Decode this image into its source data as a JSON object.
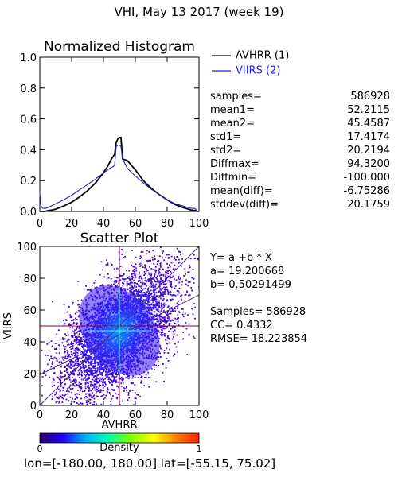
{
  "page": {
    "title": "VHI,  May 13 2017 (week 19)",
    "footer": "lon=[-180.00, 180.00] lat=[-55.15, 75.02]"
  },
  "colors": {
    "avhrr_line": "#000000",
    "viirs_line": "#2222cc",
    "frame": "#000000",
    "guide_lines": "#800040"
  },
  "chart_data": [
    {
      "type": "line",
      "title": "Normalized Histogram",
      "xlabel": "",
      "ylabel": "",
      "xlim": [
        0,
        100
      ],
      "ylim": [
        0,
        1.0
      ],
      "xticks": [
        "0",
        "20",
        "40",
        "60",
        "80",
        "100"
      ],
      "yticks": [
        "0.0",
        "0.2",
        "0.4",
        "0.6",
        "0.8",
        "1.0"
      ],
      "legend_position": "right",
      "series": [
        {
          "name": "AVHRR (1)",
          "color": "#000000",
          "x": [
            0,
            1,
            3,
            5,
            8,
            10,
            15,
            20,
            25,
            30,
            35,
            40,
            43,
            45,
            47,
            48,
            49,
            50,
            51,
            52,
            55,
            60,
            65,
            70,
            75,
            80,
            85,
            90,
            95,
            98,
            99,
            100
          ],
          "y": [
            0.0,
            0.0,
            0.0,
            0.005,
            0.01,
            0.015,
            0.035,
            0.06,
            0.095,
            0.135,
            0.185,
            0.25,
            0.3,
            0.34,
            0.37,
            0.45,
            0.47,
            0.48,
            0.48,
            0.34,
            0.33,
            0.27,
            0.2,
            0.15,
            0.11,
            0.075,
            0.045,
            0.025,
            0.01,
            0.005,
            0.0,
            0.0
          ]
        },
        {
          "name": "VIIRS (2)",
          "color": "#2222cc",
          "x": [
            0,
            0.5,
            1,
            2,
            4,
            6,
            8,
            10,
            15,
            20,
            25,
            30,
            35,
            40,
            44,
            46,
            47,
            48,
            49,
            50,
            51,
            52,
            55,
            60,
            65,
            70,
            75,
            80,
            85,
            90,
            95,
            97,
            98,
            99,
            100
          ],
          "y": [
            0.12,
            0.05,
            0.03,
            0.02,
            0.02,
            0.03,
            0.04,
            0.05,
            0.075,
            0.105,
            0.14,
            0.175,
            0.21,
            0.25,
            0.28,
            0.29,
            0.3,
            0.42,
            0.43,
            0.43,
            0.42,
            0.34,
            0.28,
            0.23,
            0.185,
            0.145,
            0.11,
            0.075,
            0.05,
            0.035,
            0.02,
            0.02,
            0.015,
            0.0,
            0.0
          ]
        }
      ]
    },
    {
      "type": "scatter",
      "title": "Scatter Plot",
      "xlabel": "AVHRR",
      "ylabel": "VIIRS",
      "xlim": [
        0,
        100
      ],
      "ylim": [
        0,
        100
      ],
      "xticks": [
        "0",
        "20",
        "40",
        "60",
        "80",
        "100"
      ],
      "yticks": [
        "0",
        "20",
        "40",
        "60",
        "80",
        "100"
      ],
      "fit_intercept": 19.200668,
      "fit_slope": 0.50291499,
      "samples": 586928,
      "cc": 0.4332,
      "rmse": 18.223854,
      "density_center": [
        50,
        47
      ],
      "guide_lines": {
        "x": 50,
        "y": 50
      }
    }
  ],
  "stats": {
    "rows": [
      {
        "label": "samples=",
        "value": "586928"
      },
      {
        "label": "mean1=",
        "value": "52.2115"
      },
      {
        "label": "mean2=",
        "value": "45.4587"
      },
      {
        "label": "std1=",
        "value": "17.4174"
      },
      {
        "label": "std2=",
        "value": "20.2194"
      },
      {
        "label": "Diffmax=",
        "value": "94.3200"
      },
      {
        "label": "Diffmin=",
        "value": "-100.000"
      },
      {
        "label": "mean(diff)=",
        "value": "-6.75286"
      },
      {
        "label": "stddev(diff)=",
        "value": "20.1759"
      }
    ]
  },
  "regression": {
    "lines": [
      "Y= a +b * X",
      "a= 19.200668",
      "b= 0.50291499",
      "",
      "Samples= 586928",
      "CC=  0.4332",
      "RMSE= 18.223854"
    ]
  },
  "colorbar": {
    "label": "Density",
    "min_label": "0",
    "max_label": "1",
    "stops": [
      "#30006a",
      "#2000ff",
      "#00b0ff",
      "#00ffb0",
      "#80ff00",
      "#ffff00",
      "#ff8000",
      "#ff2000"
    ]
  }
}
